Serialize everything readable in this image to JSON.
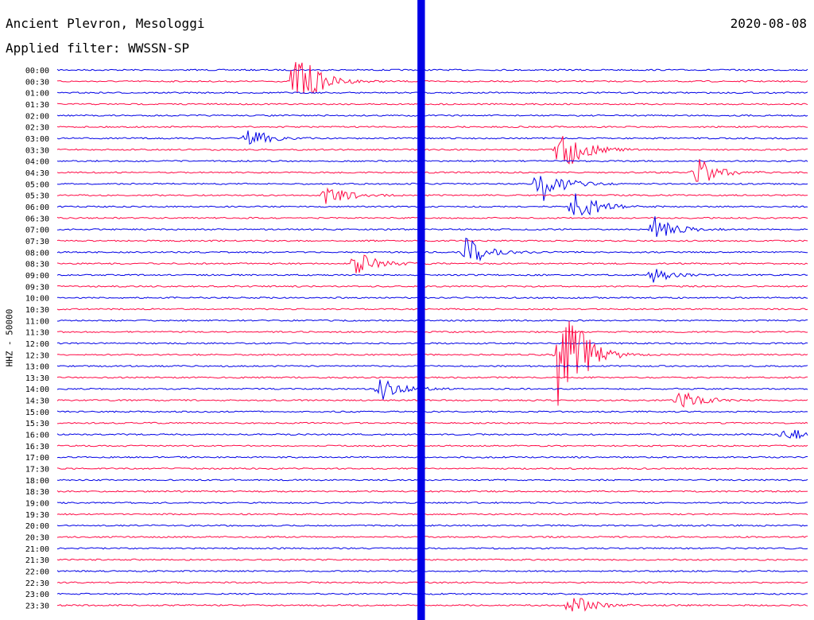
{
  "header": {
    "station": "Ancient Plevron, Mesologgi",
    "date": "2020-08-08",
    "filter": "Applied filter: WWSSN-SP"
  },
  "axis": {
    "ylabel": "HHZ - 50000"
  },
  "colors": {
    "trace_a": "#0000e6",
    "trace_b": "#ff0a46",
    "background": "#ffffff",
    "text": "#000000"
  },
  "chart_data": {
    "type": "line",
    "title": "",
    "xlabel": "",
    "ylabel": "HHZ - 50000",
    "grid": false,
    "rows": [
      "00:00",
      "00:30",
      "01:00",
      "01:30",
      "02:00",
      "02:30",
      "03:00",
      "03:30",
      "04:00",
      "04:30",
      "05:00",
      "05:30",
      "06:00",
      "06:30",
      "07:00",
      "07:30",
      "08:00",
      "08:30",
      "09:00",
      "09:30",
      "10:00",
      "10:30",
      "11:00",
      "11:30",
      "12:00",
      "12:30",
      "13:00",
      "13:30",
      "14:00",
      "14:30",
      "15:00",
      "15:30",
      "16:00",
      "16:30",
      "17:00",
      "17:30",
      "18:00",
      "18:30",
      "19:00",
      "19:30",
      "20:00",
      "20:30",
      "21:00",
      "21:30",
      "22:00",
      "22:30",
      "23:00",
      "23:30"
    ],
    "row_colors_alternate": [
      "#0000e6",
      "#ff0a46"
    ],
    "events": [
      {
        "row": "00:30",
        "minute": 9.5,
        "amplitude": 4
      },
      {
        "row": "03:00",
        "minute": 7.6,
        "amplitude": 1.2
      },
      {
        "row": "03:30",
        "minute": 20.0,
        "amplitude": 3.5
      },
      {
        "row": "04:30",
        "minute": 25.5,
        "amplitude": 1.8
      },
      {
        "row": "05:00",
        "minute": 19.2,
        "amplitude": 2.5
      },
      {
        "row": "05:30",
        "minute": 10.7,
        "amplitude": 1.5
      },
      {
        "row": "06:00",
        "minute": 20.6,
        "amplitude": 2.2
      },
      {
        "row": "07:00",
        "minute": 23.8,
        "amplitude": 1.5
      },
      {
        "row": "08:00",
        "minute": 16.3,
        "amplitude": 1.8
      },
      {
        "row": "08:30",
        "minute": 11.9,
        "amplitude": 1.4
      },
      {
        "row": "09:00",
        "minute": 23.8,
        "amplitude": 0.8
      },
      {
        "row": "12:30",
        "minute": 20.0,
        "amplitude": 10
      },
      {
        "row": "14:00",
        "minute": 12.9,
        "amplitude": 1.3
      },
      {
        "row": "14:30",
        "minute": 24.8,
        "amplitude": 1.3
      },
      {
        "row": "16:00",
        "minute": 29.0,
        "amplitude": 0.9
      },
      {
        "row": "23:30",
        "minute": 20.5,
        "amplitude": 1.4
      }
    ],
    "saturated_interval": {
      "minute_start": 14.4,
      "minute_end": 14.7
    }
  }
}
